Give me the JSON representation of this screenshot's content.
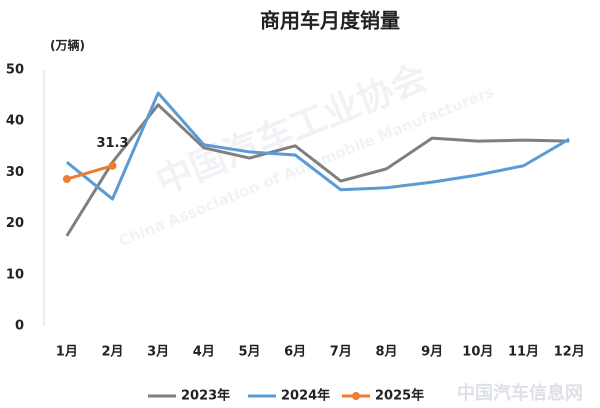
{
  "chart_data": {
    "type": "line",
    "title": "商用车月度销量",
    "y_label": "(万辆)",
    "watermark": [
      "中国汽车工业协会",
      "China Association of Automobile Manufacturers",
      "中国汽车信息网"
    ],
    "categories": [
      "1月",
      "2月",
      "3月",
      "4月",
      "5月",
      "6月",
      "7月",
      "8月",
      "9月",
      "10月",
      "11月",
      "12月"
    ],
    "series": [
      {
        "name": "2023年",
        "color": "#7f7f7f",
        "values": [
          17.6,
          32,
          43.2,
          34.8,
          32.8,
          35.2,
          28.3,
          30.7,
          36.7,
          36.1,
          36.3,
          36.1
        ]
      },
      {
        "name": "2024年",
        "color": "#5b9bd5",
        "values": [
          32,
          24.8,
          45.5,
          35.4,
          34,
          33.4,
          26.6,
          27,
          28.1,
          29.5,
          31.3,
          36.5
        ]
      },
      {
        "name": "2025年",
        "color": "#ed7d31",
        "values": [
          28.7,
          31.3,
          null,
          null,
          null,
          null,
          null,
          null,
          null,
          null,
          null,
          null
        ],
        "markers": true,
        "value_labels": [
          null,
          "31.3",
          null,
          null,
          null,
          null,
          null,
          null,
          null,
          null,
          null,
          null
        ]
      }
    ],
    "ylim": [
      0,
      50
    ],
    "yticks": [
      0,
      10,
      20,
      30,
      40,
      50
    ],
    "grid": false,
    "legend": "bottom"
  }
}
